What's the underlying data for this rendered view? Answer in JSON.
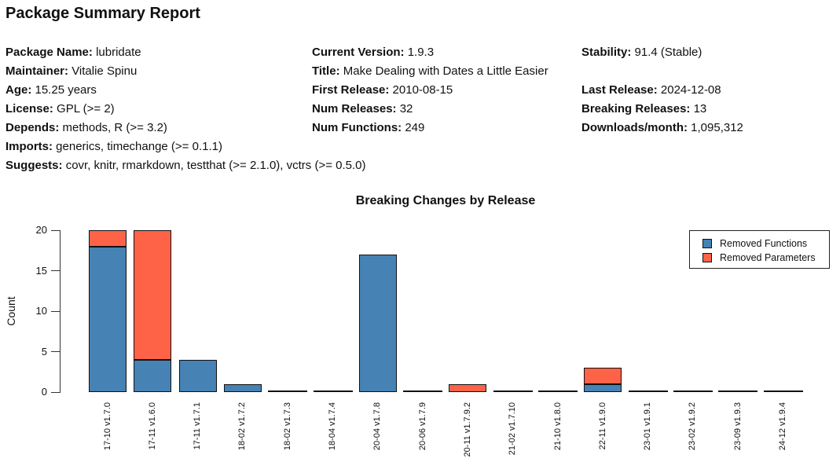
{
  "page_title": "Package Summary Report",
  "metadata_rows": [
    [
      {
        "label": "Package Name",
        "value": "lubridate"
      },
      {
        "label": "Current Version",
        "value": "1.9.3"
      },
      {
        "label": "Stability",
        "value": "91.4 (Stable)"
      }
    ],
    [
      {
        "label": "Maintainer",
        "value": "Vitalie Spinu"
      },
      {
        "label": "Title",
        "value": "Make Dealing with Dates a Little Easier"
      },
      null
    ],
    [
      {
        "label": "Age",
        "value": "15.25 years"
      },
      {
        "label": "First Release",
        "value": "2010-08-15"
      },
      {
        "label": "Last Release",
        "value": "2024-12-08"
      }
    ],
    [
      {
        "label": "License",
        "value": "GPL (>= 2)"
      },
      {
        "label": "Num Releases",
        "value": "32"
      },
      {
        "label": "Breaking Releases",
        "value": "13"
      }
    ],
    [
      {
        "label": "Depends",
        "value": "methods, R (>= 3.2)"
      },
      {
        "label": "Num Functions",
        "value": "249"
      },
      {
        "label": "Downloads/month",
        "value": "1,095,312"
      }
    ],
    [
      {
        "label": "Imports",
        "value": "generics, timechange (>= 0.1.1)"
      },
      null,
      null
    ],
    [
      {
        "label": "Suggests",
        "value": "covr, knitr, rmarkdown, testthat (>= 2.1.0), vctrs (>= 0.5.0)"
      },
      null,
      null
    ]
  ],
  "chart_data": {
    "type": "bar",
    "stacked": true,
    "title": "Breaking Changes by Release",
    "xlabel": "",
    "ylabel": "Count",
    "ylim": [
      0,
      20
    ],
    "yticks": [
      0,
      5,
      10,
      15,
      20
    ],
    "grid": false,
    "legend_position": "top-right",
    "categories": [
      "17-10 v1.7.0",
      "17-11 v1.6.0",
      "17-11 v1.7.1",
      "18-02 v1.7.2",
      "18-02 v1.7.3",
      "18-04 v1.7.4",
      "20-04 v1.7.8",
      "20-06 v1.7.9",
      "20-11 v1.7.9.2",
      "21-02 v1.7.10",
      "21-10 v1.8.0",
      "22-11 v1.9.0",
      "23-01 v1.9.1",
      "23-02 v1.9.2",
      "23-09 v1.9.3",
      "24-12 v1.9.4"
    ],
    "series": [
      {
        "name": "Removed Functions",
        "color": "#4682B4",
        "values": [
          18,
          4,
          4,
          1,
          0,
          0,
          17,
          0,
          0,
          0,
          0,
          1,
          0,
          0,
          0,
          0
        ]
      },
      {
        "name": "Removed Parameters",
        "color": "#FF6347",
        "values": [
          2,
          16,
          0,
          0,
          0,
          0,
          0,
          0,
          1,
          0,
          0,
          2,
          0,
          0,
          0,
          0
        ]
      }
    ]
  }
}
